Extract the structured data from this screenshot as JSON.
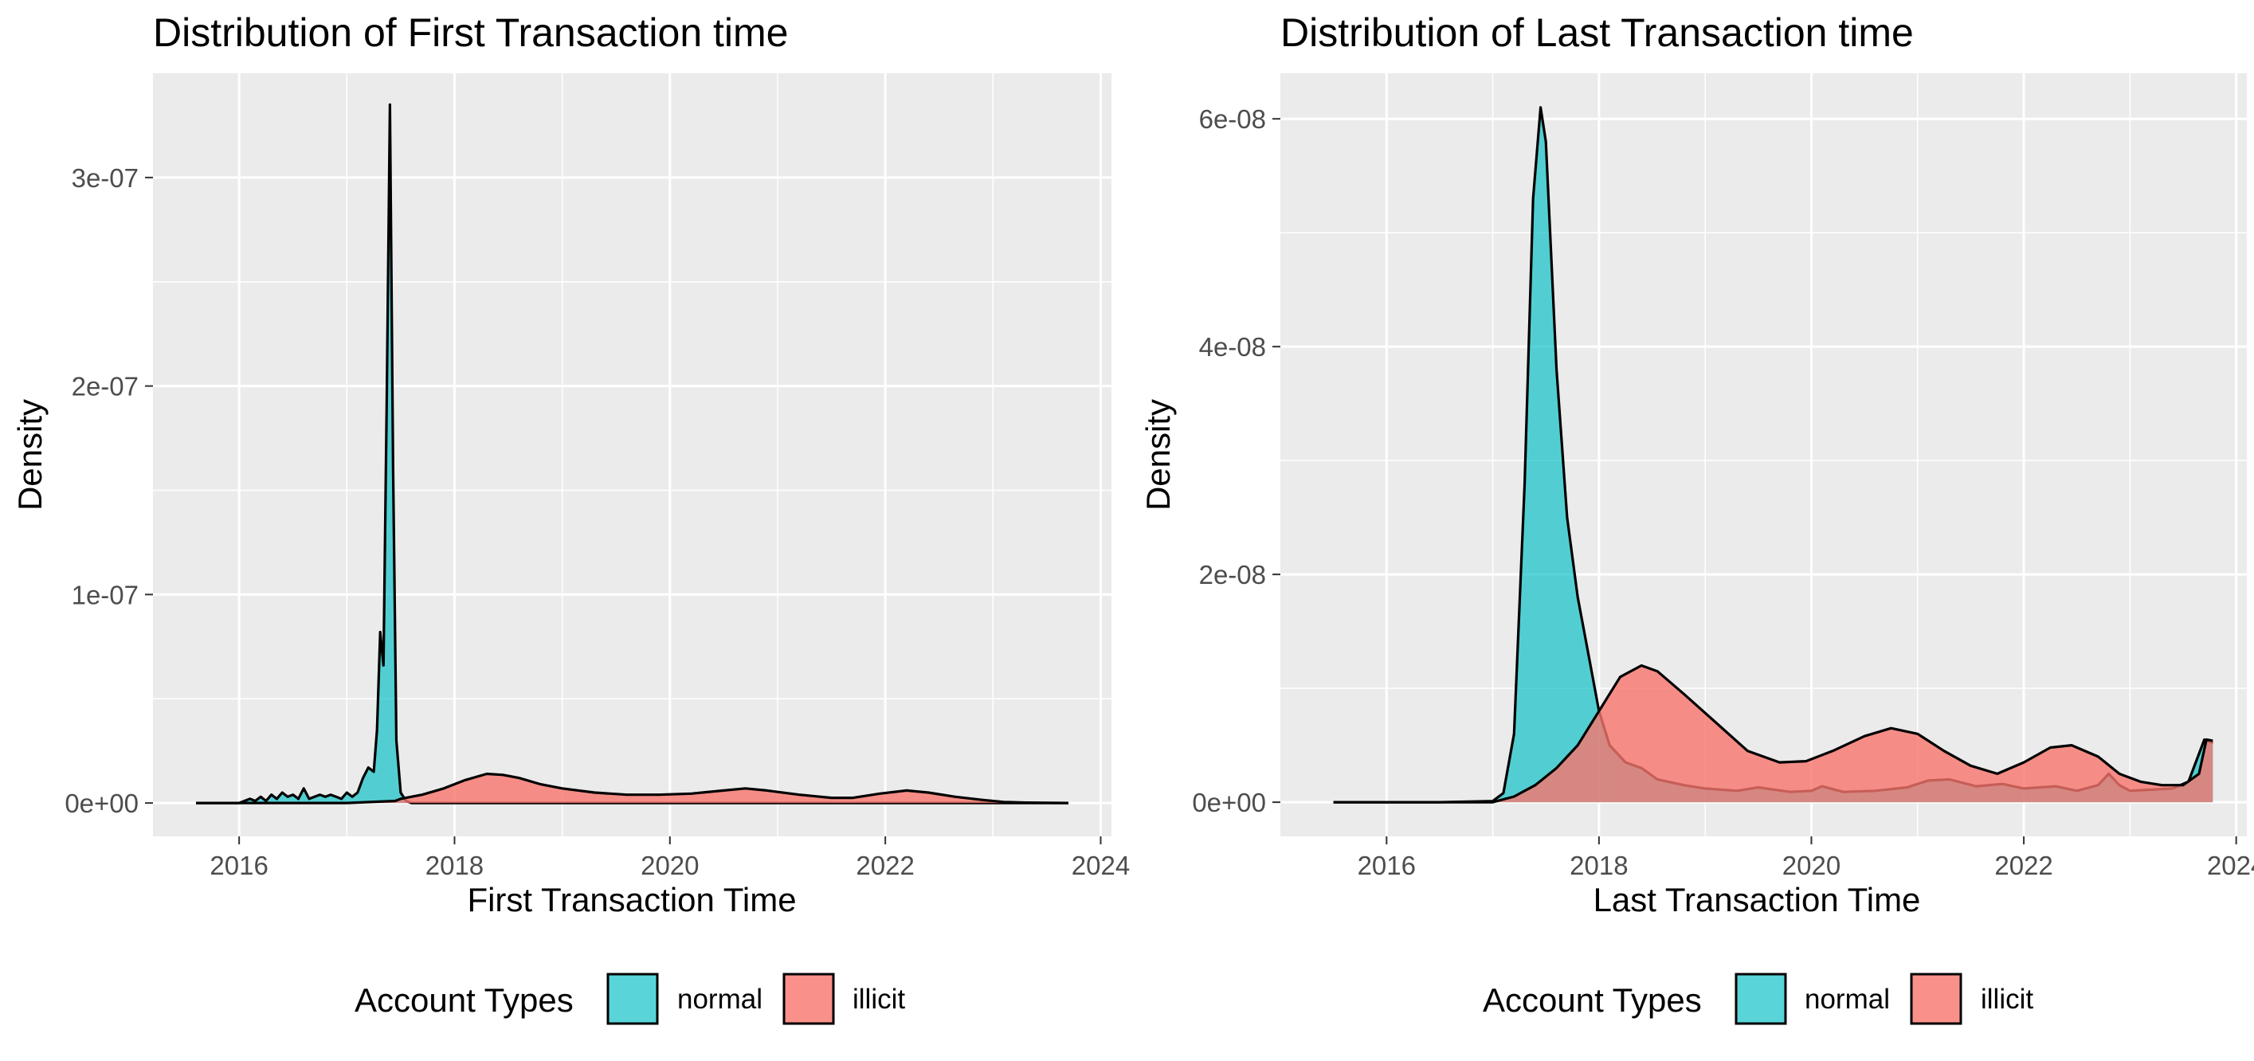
{
  "legend": {
    "title": "Account Types",
    "items": [
      {
        "label": "normal",
        "color": "#00BFC4"
      },
      {
        "label": "illicit",
        "color": "#F8766D"
      }
    ]
  },
  "chart_data": [
    {
      "type": "area",
      "title": "Distribution of First Transaction time",
      "xlabel": "First Transaction Time",
      "ylabel": "Density",
      "xlim": [
        2015.2,
        2024.1
      ],
      "ylim": [
        -1.6e-08,
        3.5e-07
      ],
      "x_ticks": [
        2016,
        2018,
        2020,
        2022,
        2024
      ],
      "x_tick_labels": [
        "2016",
        "2018",
        "2020",
        "2022",
        "2024"
      ],
      "y_ticks": [
        0,
        1e-07,
        2e-07,
        3e-07
      ],
      "y_tick_labels": [
        "0e+00",
        "1e-07",
        "2e-07",
        "3e-07"
      ],
      "grid": true,
      "legend_position": "bottom",
      "series": [
        {
          "name": "normal",
          "color": "#00BFC4",
          "points": [
            [
              2015.6,
              0
            ],
            [
              2016.0,
              0
            ],
            [
              2016.05,
              1e-09
            ],
            [
              2016.1,
              2e-09
            ],
            [
              2016.15,
              1e-09
            ],
            [
              2016.2,
              3e-09
            ],
            [
              2016.25,
              1e-09
            ],
            [
              2016.3,
              4e-09
            ],
            [
              2016.35,
              2e-09
            ],
            [
              2016.4,
              5e-09
            ],
            [
              2016.45,
              3e-09
            ],
            [
              2016.5,
              4e-09
            ],
            [
              2016.55,
              2e-09
            ],
            [
              2016.6,
              7e-09
            ],
            [
              2016.65,
              2e-09
            ],
            [
              2016.7,
              3e-09
            ],
            [
              2016.75,
              4e-09
            ],
            [
              2016.8,
              3e-09
            ],
            [
              2016.85,
              4e-09
            ],
            [
              2016.9,
              3e-09
            ],
            [
              2016.95,
              2e-09
            ],
            [
              2017.0,
              5e-09
            ],
            [
              2017.05,
              3e-09
            ],
            [
              2017.1,
              5e-09
            ],
            [
              2017.15,
              1.2e-08
            ],
            [
              2017.2,
              1.7e-08
            ],
            [
              2017.25,
              1.5e-08
            ],
            [
              2017.28,
              3.5e-08
            ],
            [
              2017.31,
              8.2e-08
            ],
            [
              2017.34,
              6.6e-08
            ],
            [
              2017.37,
              1.9e-07
            ],
            [
              2017.4,
              3.35e-07
            ],
            [
              2017.43,
              1.6e-07
            ],
            [
              2017.46,
              3e-08
            ],
            [
              2017.5,
              5e-09
            ],
            [
              2017.55,
              1e-09
            ],
            [
              2017.6,
              0
            ],
            [
              2018.0,
              0
            ],
            [
              2020.0,
              0
            ],
            [
              2022.0,
              0
            ],
            [
              2023.7,
              0
            ]
          ]
        },
        {
          "name": "illicit",
          "color": "#F8766D",
          "points": [
            [
              2015.6,
              0
            ],
            [
              2016.0,
              0
            ],
            [
              2017.0,
              0
            ],
            [
              2017.45,
              1e-09
            ],
            [
              2017.5,
              2e-09
            ],
            [
              2017.7,
              4e-09
            ],
            [
              2017.9,
              7e-09
            ],
            [
              2018.1,
              1.1e-08
            ],
            [
              2018.3,
              1.4e-08
            ],
            [
              2018.45,
              1.35e-08
            ],
            [
              2018.6,
              1.2e-08
            ],
            [
              2018.8,
              9e-09
            ],
            [
              2019.0,
              7e-09
            ],
            [
              2019.3,
              5e-09
            ],
            [
              2019.6,
              4e-09
            ],
            [
              2019.9,
              4e-09
            ],
            [
              2020.2,
              4.5e-09
            ],
            [
              2020.5,
              6e-09
            ],
            [
              2020.7,
              7e-09
            ],
            [
              2020.9,
              6e-09
            ],
            [
              2021.2,
              4e-09
            ],
            [
              2021.5,
              2.5e-09
            ],
            [
              2021.7,
              2.5e-09
            ],
            [
              2021.95,
              4.5e-09
            ],
            [
              2022.2,
              6e-09
            ],
            [
              2022.4,
              5e-09
            ],
            [
              2022.65,
              3e-09
            ],
            [
              2022.9,
              1.5e-09
            ],
            [
              2023.1,
              5e-10
            ],
            [
              2023.3,
              2e-10
            ],
            [
              2023.7,
              0
            ]
          ]
        }
      ]
    },
    {
      "type": "area",
      "title": "Distribution of Last Transaction time",
      "xlabel": "Last Transaction Time",
      "ylabel": "Density",
      "xlim": [
        2015.0,
        2024.1
      ],
      "ylim": [
        -3e-09,
        6.4e-08
      ],
      "x_ticks": [
        2016,
        2018,
        2020,
        2022,
        2024
      ],
      "x_tick_labels": [
        "2016",
        "2018",
        "2020",
        "2022",
        "2024"
      ],
      "y_ticks": [
        0,
        2e-08,
        4e-08,
        6e-08
      ],
      "y_tick_labels": [
        "0e+00",
        "2e-08",
        "4e-08",
        "6e-08"
      ],
      "grid": true,
      "legend_position": "bottom",
      "series": [
        {
          "name": "normal",
          "color": "#00BFC4",
          "points": [
            [
              2015.5,
              0
            ],
            [
              2016.0,
              0
            ],
            [
              2016.5,
              0
            ],
            [
              2017.0,
              1e-10
            ],
            [
              2017.1,
              8e-10
            ],
            [
              2017.2,
              6e-09
            ],
            [
              2017.3,
              2.8e-08
            ],
            [
              2017.38,
              5.3e-08
            ],
            [
              2017.45,
              6.1e-08
            ],
            [
              2017.5,
              5.8e-08
            ],
            [
              2017.6,
              3.8e-08
            ],
            [
              2017.7,
              2.5e-08
            ],
            [
              2017.8,
              1.8e-08
            ],
            [
              2017.9,
              1.3e-08
            ],
            [
              2018.0,
              8e-09
            ],
            [
              2018.1,
              5e-09
            ],
            [
              2018.25,
              3.5e-09
            ],
            [
              2018.4,
              3e-09
            ],
            [
              2018.55,
              2e-09
            ],
            [
              2018.8,
              1.5e-09
            ],
            [
              2019.0,
              1.2e-09
            ],
            [
              2019.3,
              1e-09
            ],
            [
              2019.5,
              1.3e-09
            ],
            [
              2019.8,
              9e-10
            ],
            [
              2020.0,
              1e-09
            ],
            [
              2020.1,
              1.4e-09
            ],
            [
              2020.3,
              9e-10
            ],
            [
              2020.6,
              1e-09
            ],
            [
              2020.9,
              1.3e-09
            ],
            [
              2021.1,
              1.9e-09
            ],
            [
              2021.3,
              2e-09
            ],
            [
              2021.55,
              1.4e-09
            ],
            [
              2021.8,
              1.6e-09
            ],
            [
              2022.0,
              1.2e-09
            ],
            [
              2022.3,
              1.4e-09
            ],
            [
              2022.5,
              1e-09
            ],
            [
              2022.7,
              1.5e-09
            ],
            [
              2022.8,
              2.5e-09
            ],
            [
              2022.9,
              1.5e-09
            ],
            [
              2023.0,
              1e-09
            ],
            [
              2023.2,
              1.1e-09
            ],
            [
              2023.4,
              1.2e-09
            ],
            [
              2023.55,
              1.8e-09
            ],
            [
              2023.7,
              5.5e-09
            ],
            [
              2023.78,
              5.2e-09
            ]
          ]
        },
        {
          "name": "illicit",
          "color": "#F8766D",
          "points": [
            [
              2015.5,
              0
            ],
            [
              2016.0,
              0
            ],
            [
              2016.5,
              0
            ],
            [
              2017.0,
              0
            ],
            [
              2017.2,
              5e-10
            ],
            [
              2017.4,
              1.5e-09
            ],
            [
              2017.6,
              3e-09
            ],
            [
              2017.8,
              5e-09
            ],
            [
              2018.0,
              8e-09
            ],
            [
              2018.2,
              1.1e-08
            ],
            [
              2018.4,
              1.2e-08
            ],
            [
              2018.55,
              1.15e-08
            ],
            [
              2018.8,
              9.5e-09
            ],
            [
              2019.1,
              7e-09
            ],
            [
              2019.4,
              4.5e-09
            ],
            [
              2019.7,
              3.5e-09
            ],
            [
              2019.95,
              3.6e-09
            ],
            [
              2020.2,
              4.5e-09
            ],
            [
              2020.5,
              5.8e-09
            ],
            [
              2020.75,
              6.5e-09
            ],
            [
              2021.0,
              6e-09
            ],
            [
              2021.25,
              4.5e-09
            ],
            [
              2021.5,
              3.2e-09
            ],
            [
              2021.75,
              2.5e-09
            ],
            [
              2022.0,
              3.5e-09
            ],
            [
              2022.25,
              4.8e-09
            ],
            [
              2022.45,
              5e-09
            ],
            [
              2022.7,
              4e-09
            ],
            [
              2022.9,
              2.5e-09
            ],
            [
              2023.1,
              1.8e-09
            ],
            [
              2023.3,
              1.5e-09
            ],
            [
              2023.5,
              1.5e-09
            ],
            [
              2023.65,
              2.5e-09
            ],
            [
              2023.72,
              5.5e-09
            ],
            [
              2023.78,
              5.4e-09
            ]
          ]
        }
      ]
    }
  ]
}
